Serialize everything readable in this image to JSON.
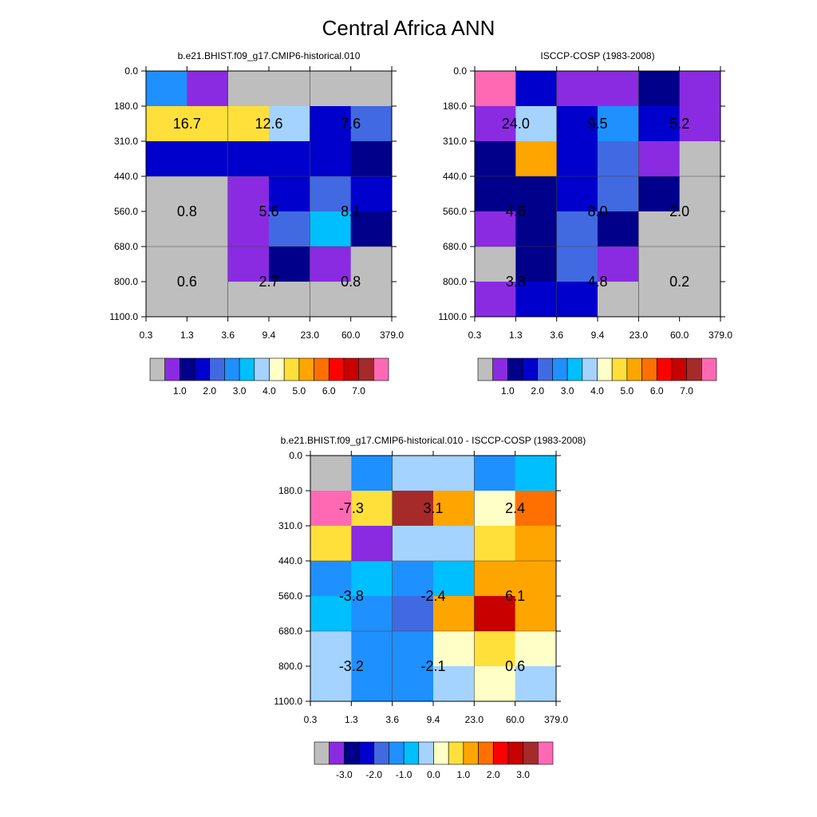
{
  "title": "Central Africa ANN",
  "chart_data": [
    {
      "type": "heatmap",
      "title": "b.e21.BHIST.f09_g17.CMIP6-historical.010",
      "x_edges": [
        "0.3",
        "1.3",
        "3.6",
        "9.4",
        "23.0",
        "60.0",
        "379.0"
      ],
      "y_edges": [
        "0.0",
        "180.0",
        "310.0",
        "440.0",
        "560.0",
        "680.0",
        "800.0",
        "1100.0"
      ],
      "cells": [
        [
          "#1e90ff",
          "#8a2be2",
          "#bebebe",
          "#bebebe",
          "#bebebe",
          "#bebebe"
        ],
        [
          "#ffe03a",
          "#ffe03a",
          "#ffe03a",
          "#a4d3ff",
          "#0000cd",
          "#4169e1"
        ],
        [
          "#0000cd",
          "#0000cd",
          "#0000cd",
          "#0000cd",
          "#0000cd",
          "#00008b"
        ],
        [
          "#bebebe",
          "#bebebe",
          "#8a2be2",
          "#0000cd",
          "#4169e1",
          "#0000cd"
        ],
        [
          "#bebebe",
          "#bebebe",
          "#8a2be2",
          "#4169e1",
          "#00bfff",
          "#00008b"
        ],
        [
          "#bebebe",
          "#bebebe",
          "#8a2be2",
          "#00008b",
          "#8a2be2",
          "#bebebe"
        ],
        [
          "#bebebe",
          "#bebebe",
          "#bebebe",
          "#bebebe",
          "#bebebe",
          "#bebebe"
        ]
      ],
      "values": [
        [
          16.7,
          12.6,
          7.6
        ],
        [
          0.8,
          5.6,
          8.1
        ],
        [
          0.6,
          2.7,
          0.8
        ]
      ],
      "value_labels": [
        [
          "16.7",
          "12.6",
          "7.6"
        ],
        [
          "0.8",
          "5.6",
          "8.1"
        ],
        [
          "0.6",
          "2.7",
          "0.8"
        ]
      ],
      "colorbar": {
        "colors": [
          "#bebebe",
          "#8a2be2",
          "#00008b",
          "#0000cd",
          "#4169e1",
          "#1e90ff",
          "#00bfff",
          "#a4d3ff",
          "#ffffc8",
          "#ffe03a",
          "#ffa500",
          "#ff7000",
          "#ff0000",
          "#c80000",
          "#a52a2a",
          "#ff69b4"
        ],
        "ticks": [
          {
            "value": 1,
            "label": "1.0"
          },
          {
            "value": 2,
            "label": "2.0"
          },
          {
            "value": 3,
            "label": "3.0"
          },
          {
            "value": 4,
            "label": "4.0"
          },
          {
            "value": 5,
            "label": "5.0"
          },
          {
            "value": 6,
            "label": "6.0"
          },
          {
            "value": 7,
            "label": "7.0"
          }
        ]
      }
    },
    {
      "type": "heatmap",
      "title": "ISCCP-COSP (1983-2008)",
      "x_edges": [
        "0.3",
        "1.3",
        "3.6",
        "9.4",
        "23.0",
        "60.0",
        "379.0"
      ],
      "y_edges": [
        "0.0",
        "180.0",
        "310.0",
        "440.0",
        "560.0",
        "680.0",
        "800.0",
        "1100.0"
      ],
      "cells": [
        [
          "#ff69b4",
          "#0000cd",
          "#8a2be2",
          "#8a2be2",
          "#00008b",
          "#8a2be2"
        ],
        [
          "#8a2be2",
          "#a4d3ff",
          "#0000cd",
          "#1e90ff",
          "#0000cd",
          "#8a2be2"
        ],
        [
          "#00008b",
          "#ffa500",
          "#0000cd",
          "#4169e1",
          "#8a2be2",
          "#bebebe"
        ],
        [
          "#00008b",
          "#00008b",
          "#0000cd",
          "#4169e1",
          "#00008b",
          "#bebebe"
        ],
        [
          "#8a2be2",
          "#00008b",
          "#4169e1",
          "#00008b",
          "#bebebe",
          "#bebebe"
        ],
        [
          "#bebebe",
          "#00008b",
          "#4169e1",
          "#8a2be2",
          "#bebebe",
          "#bebebe"
        ],
        [
          "#8a2be2",
          "#0000cd",
          "#0000cd",
          "#bebebe",
          "#bebebe",
          "#bebebe"
        ]
      ],
      "values": [
        [
          24.0,
          9.5,
          5.2
        ],
        [
          4.6,
          8.0,
          2.0
        ],
        [
          3.8,
          4.8,
          0.2
        ]
      ],
      "value_labels": [
        [
          "24.0",
          "9.5",
          "5.2"
        ],
        [
          "4.6",
          "8.0",
          "2.0"
        ],
        [
          "3.8",
          "4.8",
          "0.2"
        ]
      ],
      "colorbar": {
        "colors": [
          "#bebebe",
          "#8a2be2",
          "#00008b",
          "#0000cd",
          "#4169e1",
          "#1e90ff",
          "#00bfff",
          "#a4d3ff",
          "#ffffc8",
          "#ffe03a",
          "#ffa500",
          "#ff7000",
          "#ff0000",
          "#c80000",
          "#a52a2a",
          "#ff69b4"
        ],
        "ticks": [
          {
            "value": 1,
            "label": "1.0"
          },
          {
            "value": 2,
            "label": "2.0"
          },
          {
            "value": 3,
            "label": "3.0"
          },
          {
            "value": 4,
            "label": "4.0"
          },
          {
            "value": 5,
            "label": "5.0"
          },
          {
            "value": 6,
            "label": "6.0"
          },
          {
            "value": 7,
            "label": "7.0"
          }
        ]
      }
    },
    {
      "type": "heatmap",
      "title": "b.e21.BHIST.f09_g17.CMIP6-historical.010 - ISCCP-COSP (1983-2008)",
      "x_edges": [
        "0.3",
        "1.3",
        "3.6",
        "9.4",
        "23.0",
        "60.0",
        "379.0"
      ],
      "y_edges": [
        "0.0",
        "180.0",
        "310.0",
        "440.0",
        "560.0",
        "680.0",
        "800.0",
        "1100.0"
      ],
      "cells": [
        [
          "#bebebe",
          "#1e90ff",
          "#a4d3ff",
          "#a4d3ff",
          "#1e90ff",
          "#00bfff"
        ],
        [
          "#ff69b4",
          "#ffe03a",
          "#a52a2a",
          "#ffa500",
          "#ffffc8",
          "#ff7000"
        ],
        [
          "#ffe03a",
          "#8a2be2",
          "#a4d3ff",
          "#a4d3ff",
          "#ffe03a",
          "#ffa500"
        ],
        [
          "#1e90ff",
          "#00bfff",
          "#1e90ff",
          "#00bfff",
          "#ffa500",
          "#ffa500"
        ],
        [
          "#00bfff",
          "#1e90ff",
          "#4169e1",
          "#ffa500",
          "#c80000",
          "#ffa500"
        ],
        [
          "#a4d3ff",
          "#1e90ff",
          "#1e90ff",
          "#ffffc8",
          "#ffe03a",
          "#ffffc8"
        ],
        [
          "#a4d3ff",
          "#1e90ff",
          "#1e90ff",
          "#a4d3ff",
          "#ffffc8",
          "#a4d3ff"
        ]
      ],
      "values": [
        [
          -7.3,
          3.1,
          2.4
        ],
        [
          -3.8,
          -2.4,
          6.1
        ],
        [
          -3.2,
          -2.1,
          0.6
        ]
      ],
      "value_labels": [
        [
          "-7.3",
          "3.1",
          "2.4"
        ],
        [
          "-3.8",
          "-2.4",
          "6.1"
        ],
        [
          "-3.2",
          "-2.1",
          "0.6"
        ]
      ],
      "colorbar": {
        "colors": [
          "#bebebe",
          "#8a2be2",
          "#00008b",
          "#0000cd",
          "#4169e1",
          "#1e90ff",
          "#00bfff",
          "#a4d3ff",
          "#ffffc8",
          "#ffe03a",
          "#ffa500",
          "#ff7000",
          "#ff0000",
          "#c80000",
          "#a52a2a",
          "#ff69b4"
        ],
        "ticks": [
          {
            "value": -3,
            "label": "-3.0"
          },
          {
            "value": -2,
            "label": "-2.0"
          },
          {
            "value": -1,
            "label": "-1.0"
          },
          {
            "value": 0,
            "label": "0.0"
          },
          {
            "value": 1,
            "label": "1.0"
          },
          {
            "value": 2,
            "label": "2.0"
          },
          {
            "value": 3,
            "label": "3.0"
          }
        ]
      }
    }
  ]
}
